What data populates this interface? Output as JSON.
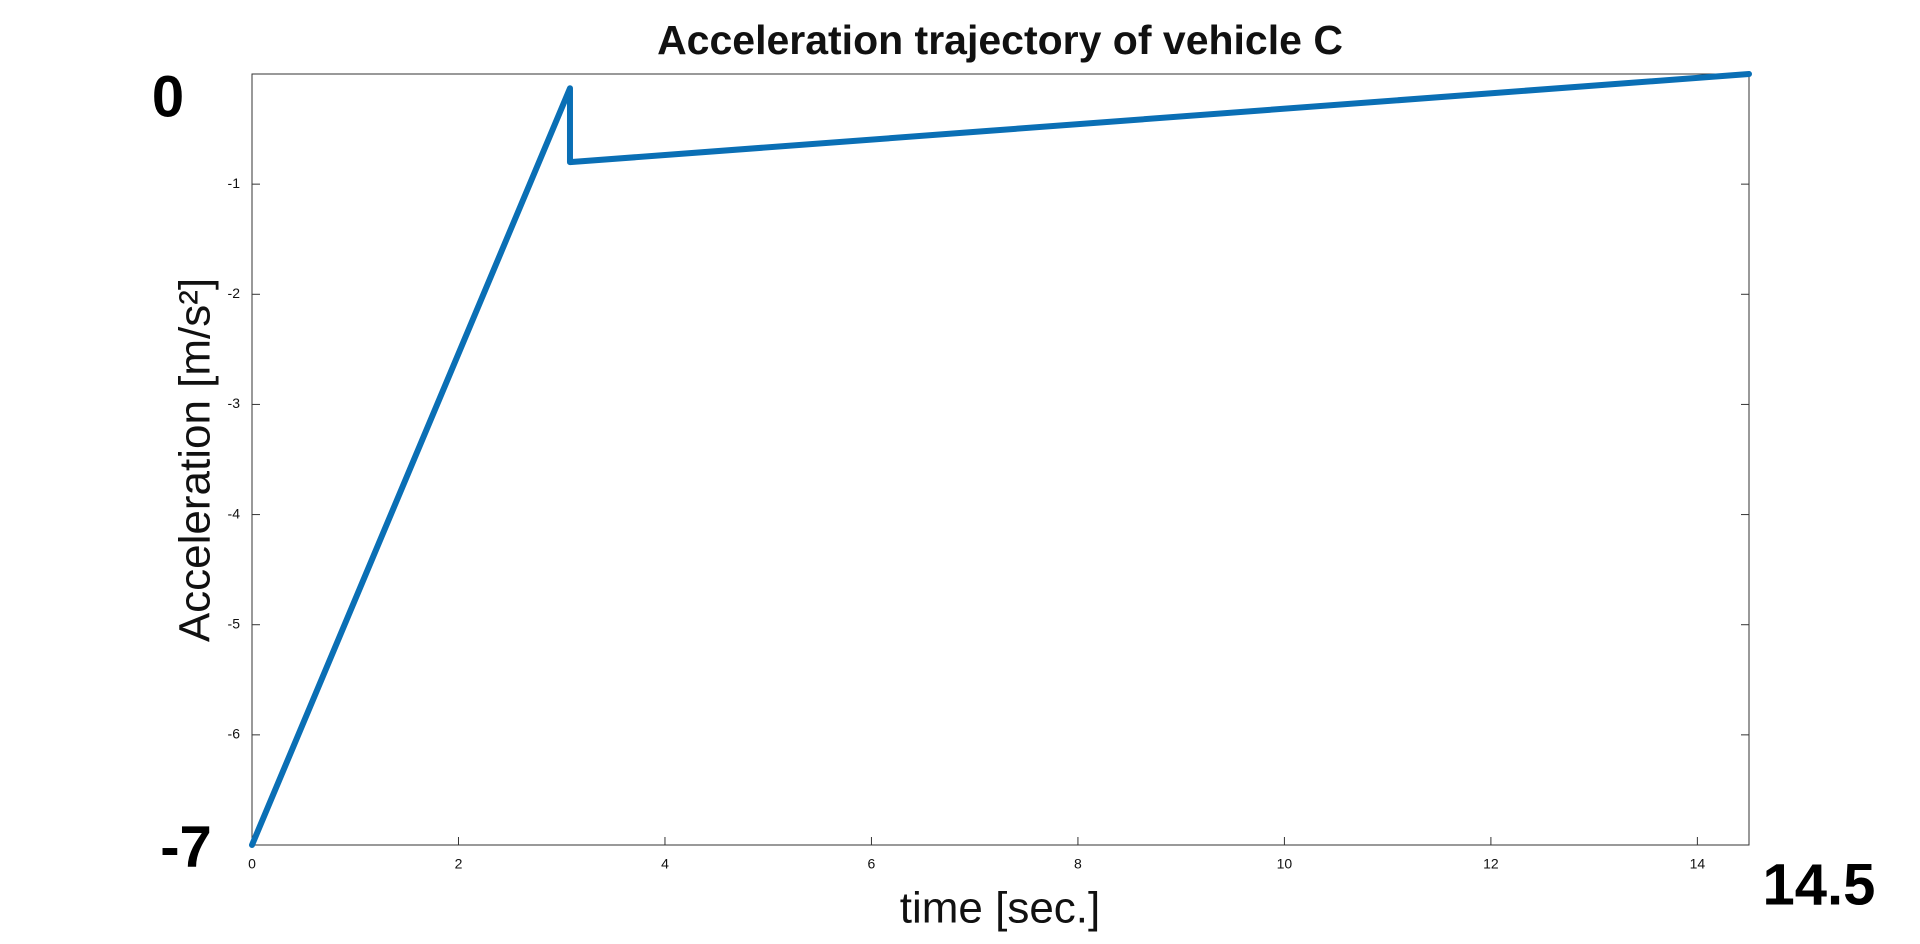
{
  "chart_data": {
    "type": "line",
    "title": "Acceleration trajectory of vehicle C",
    "x_label": "time [sec.]",
    "y_label": "Acceleration  [m/s²]",
    "x": [
      0,
      3.08,
      3.08,
      14.5
    ],
    "series": [
      {
        "name": "Acceleration",
        "color": "#0a6fb5",
        "values": [
          -7,
          -0.13,
          -0.8,
          0
        ]
      }
    ],
    "xlim": [
      0,
      14.5
    ],
    "ylim": [
      -7,
      0
    ],
    "xticks": [
      0,
      2,
      4,
      6,
      8,
      10,
      12,
      14,
      14.5
    ],
    "yticks": [
      -7,
      -6,
      -5,
      -4,
      -3,
      -2,
      -1,
      0
    ],
    "grid": false
  }
}
